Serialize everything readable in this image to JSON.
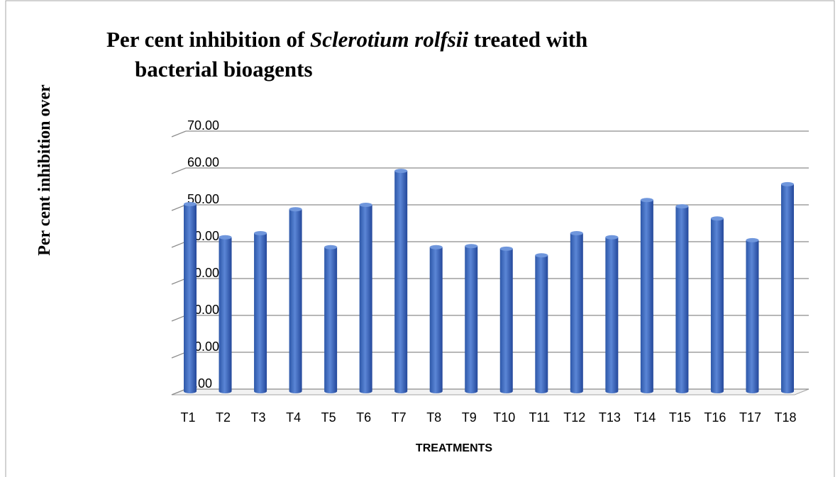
{
  "chart_data": {
    "type": "bar",
    "title_lines": [
      [
        {
          "text": "Per cent inhibition of "
        },
        {
          "text": "Sclerotium rolfsii",
          "italic": true
        },
        {
          "text": " treated with"
        }
      ],
      [
        {
          "text": "bacterial bioagents"
        }
      ]
    ],
    "y_label": "Per cent inhibition over",
    "x_label": "TREATMENTS",
    "categories": [
      "T1",
      "T2",
      "T3",
      "T4",
      "T5",
      "T6",
      "T7",
      "T8",
      "T9",
      "T10",
      "T11",
      "T12",
      "T13",
      "T14",
      "T15",
      "T16",
      "T17",
      "T18"
    ],
    "values": [
      50.2,
      41.2,
      42.3,
      48.8,
      38.5,
      50.0,
      59.2,
      38.5,
      38.8,
      38.1,
      36.3,
      42.3,
      41.2,
      51.3,
      49.6,
      46.3,
      40.4,
      55.6
    ],
    "color": "#4472c4",
    "ylim": [
      0,
      70
    ],
    "yticks": [
      {
        "value": 0,
        "label": "0.00"
      },
      {
        "value": 10,
        "label": "10.00"
      },
      {
        "value": 20,
        "label": "20.00"
      },
      {
        "value": 30,
        "label": "30.00"
      },
      {
        "value": 40,
        "label": "40.00"
      },
      {
        "value": 50,
        "label": "50.00"
      },
      {
        "value": 60,
        "label": "60.00"
      },
      {
        "value": 70,
        "label": "70.00"
      }
    ],
    "grid": true
  }
}
